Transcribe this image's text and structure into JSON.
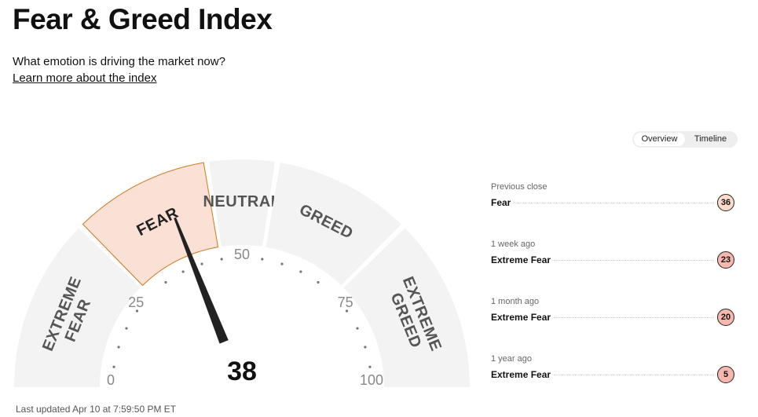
{
  "title": "Fear & Greed Index",
  "subtitle": "What emotion is driving the market now?",
  "learn_link": "Learn more about the index",
  "gauge": {
    "value": 38,
    "value_label": "38",
    "current_rating": "Fear",
    "segments": [
      {
        "label": "EXTREME FEAR",
        "from": 0,
        "to": 25
      },
      {
        "label": "FEAR",
        "from": 25,
        "to": 45
      },
      {
        "label": "NEUTRAL",
        "from": 45,
        "to": 55
      },
      {
        "label": "GREED",
        "from": 55,
        "to": 75
      },
      {
        "label": "EXTREME GREED",
        "from": 75,
        "to": 100
      }
    ],
    "ticks": [
      "0",
      "25",
      "50",
      "75",
      "100"
    ],
    "active_color": "#fbe0d5",
    "active_border": "#c97a1e"
  },
  "last_updated": "Last updated Apr 10 at 7:59:50 PM ET",
  "toggle": {
    "overview": "Overview",
    "timeline": "Timeline"
  },
  "history": [
    {
      "label": "Previous close",
      "rating": "Fear",
      "value": "36",
      "color": "#fbdccb"
    },
    {
      "label": "1 week ago",
      "rating": "Extreme Fear",
      "value": "23",
      "color": "#f6b7ae"
    },
    {
      "label": "1 month ago",
      "rating": "Extreme Fear",
      "value": "20",
      "color": "#f6b7ae"
    },
    {
      "label": "1 year ago",
      "rating": "Extreme Fear",
      "value": "5",
      "color": "#f6b7ae"
    }
  ]
}
